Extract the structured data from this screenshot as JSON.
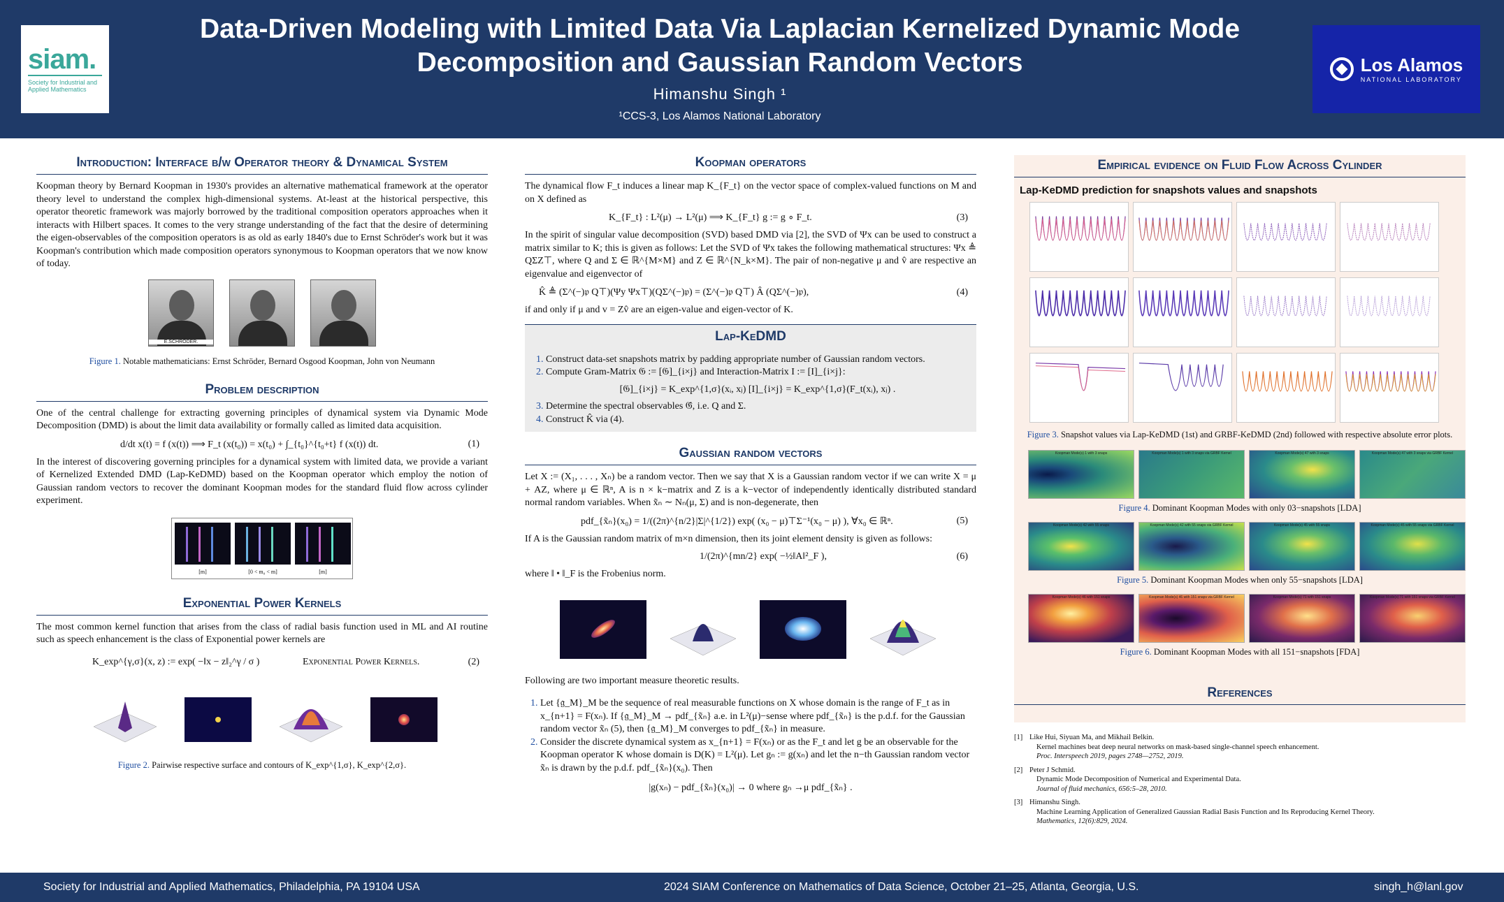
{
  "header": {
    "title": "Data-Driven Modeling with Limited Data Via Laplacian Kernelized Dynamic Mode Decomposition and Gaussian Random Vectors",
    "author": "Himanshu Singh ¹",
    "affiliation": "¹CCS-3, Los Alamos National Laboratory",
    "logo_left": {
      "word": "siam.",
      "sub": "Society for Industrial and Applied Mathematics"
    },
    "logo_right": {
      "name": "Los Alamos",
      "sub": "NATIONAL LABORATORY"
    }
  },
  "footer": {
    "left": "Society for Industrial and Applied Mathematics, Philadelphia, PA 19104 USA",
    "center": "2024 SIAM Conference on Mathematics of Data Science, October 21–25, Atlanta, Georgia, U.S.",
    "right": "singh_h@lanl.gov"
  },
  "col1": {
    "intro_title": "Introduction: Interface b/w Operator theory & Dynamical System",
    "intro_text": "Koopman theory by Bernard Koopman in 1930's provides an alternative mathematical framework at the operator theory level to understand the complex high-dimensional systems. At-least at the historical perspective, this operator theoretic framework was majorly borrowed by the traditional composition operators approaches when it interacts with Hilbert spaces. It comes to the very strange understanding of the fact that the desire of determining the eigen-observables of the composition operators is as old as early 1840's due to Ernst Schröder's work but it was Koopman's contribution which made composition operators synonymous to Koopman operators that we now know of today.",
    "portrait_label": "E.SCHRÖDER.",
    "fig1_label": "Figure 1.",
    "fig1_text": "Notable mathematicians: Ernst Schröder, Bernard Osgood Koopman, John von Neumann",
    "problem_title": "Problem description",
    "problem_text1": "One of the central challenge for extracting governing principles of dynamical system via Dynamic Mode Decomposition (DMD) is about the limit data availability or formally called as limited data acquisition.",
    "eq1": "d/dt x(t) = f (x(t)) ⟹ F_t (x(t₀)) = x(t₀) + ∫_{t₀}^{t₀+t} f (x(t)) dt.",
    "eq1_num": "(1)",
    "problem_text2": "In the interest of discovering governing principles for a dynamical system with limited data, we provide a variant of Kernelized Extended DMD (Lap-KeDMD) based on the Koopman operator which employ the notion of Gaussian random vectors to recover the dominant Koopman modes for the standard fluid flow across cylinder experiment.",
    "strip_labels": [
      "[m]",
      "[0 < m₀ < m]",
      "[m]"
    ],
    "kernels_title": "Exponential Power Kernels",
    "kernels_text": "The most common kernel function that arises from the class of radial basis function used in ML and AI routine such as speech enhancement is the class of Exponential power kernels are",
    "eq2": "K_exp^{γ,σ}(x, z) := exp( −‖x − z‖₂^γ / σ )",
    "eq2_name": "Exponential Power Kernels.",
    "eq2_num": "(2)",
    "fig2_label": "Figure 2.",
    "fig2_text": "Pairwise respective surface and contours of K_exp^{1,σ}, K_exp^{2,σ}."
  },
  "col2": {
    "koopman_title": "Koopman operators",
    "koopman_text1": "The dynamical flow F_t induces a linear map K_{F_t} on the vector space of complex-valued functions on M and on X defined as",
    "eq3": "K_{F_t} : L²(μ) → L²(μ) ⟹ K_{F_t} g := g ∘ F_t.",
    "eq3_num": "(3)",
    "koopman_text2": "In the spirit of singular value decomposition (SVD) based DMD via [2], the SVD of Ψx can be used to construct a matrix similar to K; this is given as follows: Let the SVD of Ψx takes the following mathematical structures: Ψx ≜ QΣZ⊤, where Q and Σ ∈ ℝ^{M×M} and Z ∈ ℝ^{N_k×M}. The pair of non-negative μ and v̂ are respective an eigenvalue and eigenvector of",
    "eq4": "K̂ ≜ (Σ^(−)𝔭 Q⊤)(Ψy Ψx⊤)(QΣ^(−)𝔭) = (Σ^(−)𝔭 Q⊤) Â (QΣ^(−)𝔭),",
    "eq4_num": "(4)",
    "koopman_text3": "if and only if μ and v = Zv̂ are an eigen-value and eigen-vector of K.",
    "lap_title": "Lap-KeDMD",
    "lap_steps": [
      "Construct data-set snapshots matrix by padding appropriate number of Gaussian random vectors.",
      "Compute Gram-Matrix 𝔊 := [𝔊]_{i×j} and Interaction-Matrix I := [I]_{i×j}:",
      "Determine the spectral observables 𝔊̂, i.e. Q and Σ.",
      "Construct K̂ via (4)."
    ],
    "lap_eq": "[𝔊]_{i×j} = K_exp^{1,σ}(xᵢ, xⱼ)        [I]_{i×j} = K_exp^{1,σ}(F_t(xᵢ), xⱼ) .",
    "grv_title": "Gaussian random vectors",
    "grv_text1": "Let X := (X₁, . . . , Xₙ) be a random vector. Then we say that X is a Gaussian random vector if we can write X = μ + AZ, where μ ∈ ℝⁿ, A is n × k−matrix and Z is a k−vector of independently identically distributed standard normal random variables. When x̃ₙ ∼ Nₙ(μ, Σ) and is non-degenerate, then",
    "eq5": "pdf_{x̃ₙ}(x₀) = 1/((2π)^{n/2}|Σ|^{1/2}) exp( (x₀ − μ)⊤Σ⁻¹(x₀ − μ) ),  ∀x₀ ∈ ℝⁿ.",
    "eq5_num": "(5)",
    "grv_text2": "If A is the Gaussian random matrix of m×n dimension, then its joint element density is given as follows:",
    "eq6": "1/(2π)^{mn/2} exp( −½‖A‖²_F ),",
    "eq6_num": "(6)",
    "grv_text3": "where ‖ • ‖_F is the Frobenius norm.",
    "grv_text4": "Following are two important measure theoretic results.",
    "results": [
      "Let {𝔤_M}_M be the sequence of real measurable functions on X whose domain is the range of F_t as in x_{n+1} = F(xₙ). If {𝔤_M}_M → pdf_{x̃ₙ} a.e. in L²(μ)−sense where pdf_{x̃ₙ} is the p.d.f. for the Gaussian random vector x̃ₙ (5), then {𝔤_M}_M converges to pdf_{x̃ₙ} in measure.",
      "Consider the discrete dynamical system as x_{n+1} = F(xₙ) or as the F_t and let g be an observable for the Koopman operator K whose domain is D(K) = L²(μ). Let gₙ := g(xₙ) and let the n−th Gaussian random vector x̃ₙ is drawn by the p.d.f. pdf_{x̃ₙ}(x₀). Then"
    ],
    "eq7": "|g(xₙ) − pdf_{x̃ₙ}(x₀)| → 0   where   gₙ →μ pdf_{x̃ₙ} ."
  },
  "col3": {
    "empirical_title": "Empirical evidence on Fluid Flow Across Cylinder",
    "subhead": "Lap-KeDMD prediction for snapshots values and snapshots",
    "fig3_label": "Figure 3.",
    "fig3_text": "Snapshot values via Lap-KeDMD (1st) and GRBF-KeDMD (2nd) followed with respective absolute error plots.",
    "fig4_label": "Figure 4.",
    "fig4_text": "Dominant Koopman Modes with only 03−snapshots [LDA]",
    "fig4_titles": [
      "Koopman Mode(s) 1 with 3 snaps",
      "Koopman Mode(s) 1 with 3 snaps via GRBF Kernel",
      "Koopman Mode(s) 47 with 3 snaps",
      "Koopman Mode(s) 47 with 3 snaps via GRBF Kernel"
    ],
    "fig5_label": "Figure 5.",
    "fig5_text": "Dominant Koopman Modes when only 55−snapshots [LDA]",
    "fig5_titles": [
      "Koopman Mode(s) 42 with 55 snaps",
      "Koopman Mode(s) 42 with 55 snaps via GRBF Kernel",
      "Koopman Mode(s) 45 with 55 snaps",
      "Koopman Mode(s) 45 with 55 snaps via GRBF Kernel"
    ],
    "fig6_label": "Figure 6.",
    "fig6_text": "Dominant Koopman Modes with all 151−snapshots [FDA]",
    "fig6_titles": [
      "Koopman Mode(s) 46 with 151 snaps",
      "Koopman Mode(s) 46 with 151 snaps via GRBF Kernel",
      "Koopman Mode(s) 71 with 151 snaps",
      "Koopman Mode(s) 71 with 151 snaps via GRBF Kernel"
    ],
    "refs_title": "References",
    "refs": [
      {
        "n": "[1]",
        "authors": "Like Hui, Siyuan Ma, and Mikhail Belkin.",
        "title": "Kernel machines beat deep neural networks on mask-based single-channel speech enhancement.",
        "venue": "Proc. Interspeech 2019, pages 2748—2752, 2019."
      },
      {
        "n": "[2]",
        "authors": "Peter J Schmid.",
        "title": "Dynamic Mode Decomposition of Numerical and Experimental Data.",
        "venue": "Journal of fluid mechanics, 656:5–28, 2010."
      },
      {
        "n": "[3]",
        "authors": "Himanshu Singh.",
        "title": "Machine Learning Application of Generalized Gaussian Radial Basis Function and Its Reproducing Kernel Theory.",
        "venue": "Mathematics, 12(6):829, 2024."
      }
    ]
  }
}
